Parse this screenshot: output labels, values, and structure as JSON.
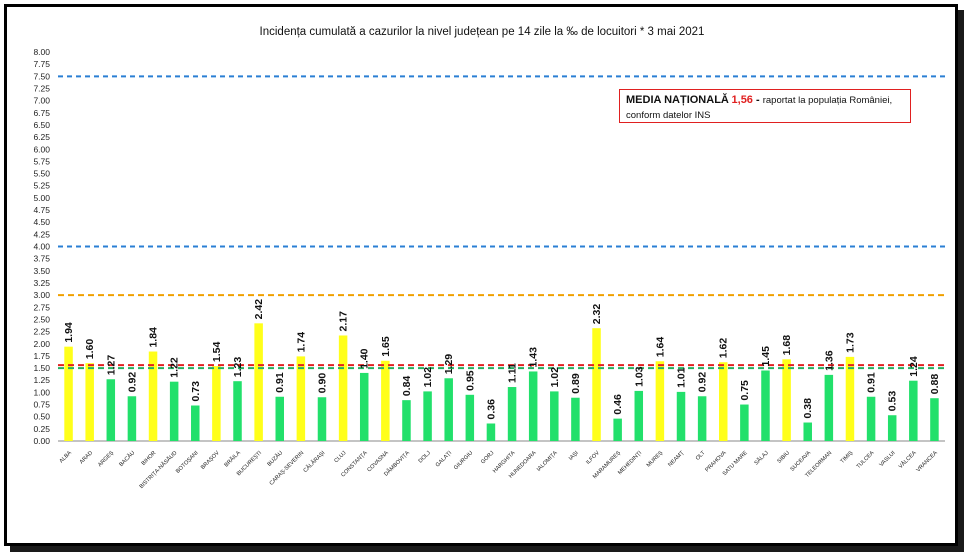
{
  "colors": {
    "green": "#22e06b",
    "yellow": "#ffff1a",
    "blue_line": "#2a7fd4",
    "orange_line": "#f0a000",
    "red_line": "#e02020",
    "green_line": "#22b060"
  },
  "info_box": {
    "title": "MEDIA NAȚIONALĂ",
    "value": "1,56",
    "dash": " - ",
    "text1": "raportat la populația României,",
    "text2": "conform datelor INS"
  },
  "chart_data": {
    "type": "bar",
    "title": "Incidența cumulată a cazurilor la nivel județean pe 14 zile la ‰ de locuitori *   3 mai 2021",
    "xlabel": "",
    "ylabel": "",
    "ylim": [
      0,
      8
    ],
    "yticks": [
      "0.00",
      "0.25",
      "0.50",
      "0.75",
      "1.00",
      "1.25",
      "1.50",
      "1.75",
      "2.00",
      "2.25",
      "2.50",
      "2.75",
      "3.00",
      "3.25",
      "3.50",
      "3.75",
      "4.00",
      "4.25",
      "4.50",
      "4.75",
      "5.00",
      "5.25",
      "5.50",
      "5.75",
      "6.00",
      "6.25",
      "6.50",
      "6.75",
      "7.00",
      "7.25",
      "7.50",
      "7.75",
      "8.00"
    ],
    "categories": [
      "ALBA",
      "ARAD",
      "ARGEȘ",
      "BACĂU",
      "BIHOR",
      "BISTRIȚA-NĂSĂUD",
      "BOTOȘANI",
      "BRAȘOV",
      "BRĂILA",
      "BUCUREȘTI",
      "BUZĂU",
      "CARAȘ-SEVERIN",
      "CĂLĂRAȘI",
      "CLUJ",
      "CONSTANȚA",
      "COVASNA",
      "DÂMBOVIȚA",
      "DOLJ",
      "GALAȚI",
      "GIURGIU",
      "GORJ",
      "HARGHITA",
      "HUNEDOARA",
      "IALOMIȚA",
      "IAȘI",
      "ILFOV",
      "MARAMUREȘ",
      "MEHEDINȚI",
      "MUREȘ",
      "NEAMȚ",
      "OLT",
      "PRAHOVA",
      "SATU MARE",
      "SĂLAJ",
      "SIBIU",
      "SUCEAVA",
      "TELEORMAN",
      "TIMIȘ",
      "TULCEA",
      "VASLUI",
      "VÂLCEA",
      "VRANCEA"
    ],
    "values": [
      1.94,
      1.6,
      1.27,
      0.92,
      1.84,
      1.22,
      0.73,
      1.54,
      1.23,
      2.42,
      0.91,
      1.74,
      0.9,
      2.17,
      1.4,
      1.65,
      0.84,
      1.02,
      1.29,
      0.95,
      0.36,
      1.11,
      1.43,
      1.02,
      0.89,
      2.32,
      0.46,
      1.03,
      1.64,
      1.01,
      0.92,
      1.62,
      0.75,
      1.45,
      1.68,
      0.38,
      1.36,
      1.73,
      0.91,
      0.53,
      1.24,
      0.88
    ],
    "labels": [
      "1.94",
      "1.60",
      "1.27",
      "0.92",
      "1.84",
      "1.22",
      "0.73",
      "1.54",
      "1.23",
      "2.42",
      "0.91",
      "1.74",
      "0.90",
      "2.17",
      "1.40",
      "1.65",
      "0.84",
      "1.02",
      "1.29",
      "0.95",
      "0.36",
      "1.11",
      "1.43",
      "1.02",
      "0.89",
      "2.32",
      "0.46",
      "1.03",
      "1.64",
      "1.01",
      "0.92",
      "1.62",
      "0.75",
      "1.45",
      "1.68",
      "0.38",
      "1.36",
      "1.73",
      "0.91",
      "0.53",
      "1.24",
      "0.88"
    ],
    "highlight_threshold": 1.5,
    "reference_lines": [
      {
        "name": "blue-upper",
        "value": 7.5,
        "color": "#2a7fd4"
      },
      {
        "name": "blue-lower",
        "value": 4.0,
        "color": "#2a7fd4"
      },
      {
        "name": "orange",
        "value": 3.0,
        "color": "#f0a000"
      },
      {
        "name": "national-average",
        "value": 1.56,
        "color": "#e02020"
      },
      {
        "name": "green",
        "value": 1.5,
        "color": "#22b060"
      }
    ]
  }
}
